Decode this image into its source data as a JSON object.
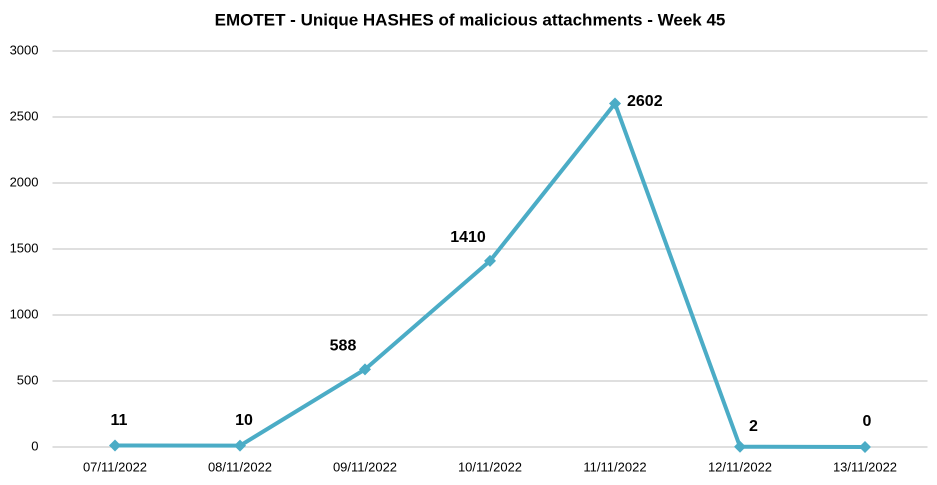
{
  "chart_data": {
    "type": "line",
    "title": "EMOTET - Unique HASHES of malicious attachments - Week 45",
    "categories": [
      "07/11/2022",
      "08/11/2022",
      "09/11/2022",
      "10/11/2022",
      "11/11/2022",
      "12/11/2022",
      "13/11/2022"
    ],
    "series": [
      {
        "name": "Unique HASHES",
        "color": "#4bacc6",
        "values": [
          11,
          10,
          588,
          1410,
          2602,
          2,
          0
        ]
      }
    ],
    "ylim": [
      0,
      3000
    ],
    "yticks": [
      0,
      500,
      1000,
      1500,
      2000,
      2500,
      3000
    ],
    "grid": true
  }
}
